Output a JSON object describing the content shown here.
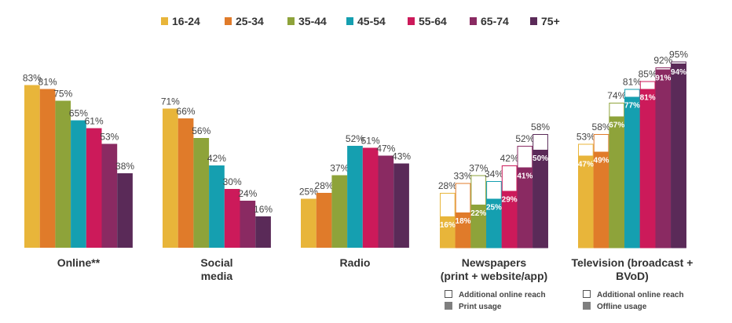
{
  "colors": {
    "16-24": "#e8b53a",
    "25-34": "#e07b2a",
    "35-44": "#8ea33a",
    "45-54": "#159fb0",
    "55-64": "#cc1a5a",
    "65-74": "#8a2a62",
    "75+": "#5a2a58",
    "print_usage_swatch": "#7f7f7f"
  },
  "chart_data": {
    "type": "bar",
    "legend_position": "top",
    "grid": false,
    "series_names": [
      "16-24",
      "25-34",
      "35-44",
      "45-54",
      "55-64",
      "65-74",
      "75+"
    ],
    "groups": [
      {
        "label": "Online**",
        "values": [
          83,
          81,
          75,
          65,
          61,
          53,
          38
        ],
        "labels": [
          "83%",
          "81%",
          "75%",
          "65%",
          "61%",
          "53%",
          "38%"
        ]
      },
      {
        "label": "Social\nmedia",
        "values": [
          71,
          66,
          56,
          42,
          30,
          24,
          16
        ],
        "labels": [
          "71%",
          "66%",
          "56%",
          "42%",
          "30%",
          "24%",
          "16%"
        ]
      },
      {
        "label": "Radio",
        "values": [
          25,
          28,
          37,
          52,
          51,
          47,
          43
        ],
        "labels": [
          "25%",
          "28%",
          "37%",
          "52%",
          "51%",
          "47%",
          "43%"
        ]
      },
      {
        "label": "Newspapers\n(print + website/app)",
        "values": [
          28,
          33,
          37,
          34,
          42,
          52,
          58
        ],
        "labels": [
          "28%",
          "33%",
          "37%",
          "34%",
          "42%",
          "52%",
          "58%"
        ],
        "inner_values": [
          16,
          18,
          22,
          25,
          29,
          41,
          50
        ],
        "inner_labels": [
          "16%",
          "18%",
          "22%",
          "25%",
          "29%",
          "41%",
          "50%"
        ],
        "stacked_note": {
          "outline_label": "Additional online reach",
          "fill_label": "Print usage"
        }
      },
      {
        "label": "Television (broadcast +\nBVoD)",
        "values": [
          53,
          58,
          74,
          81,
          85,
          92,
          95
        ],
        "labels": [
          "53%",
          "58%",
          "74%",
          "81%",
          "85%",
          "92%",
          "95%"
        ],
        "inner_values": [
          47,
          49,
          67,
          77,
          81,
          91,
          94
        ],
        "inner_labels": [
          "47%",
          "49%",
          "67%",
          "77%",
          "81%",
          "91%",
          "94%"
        ],
        "stacked_note": {
          "outline_label": "Additional online reach",
          "fill_label": "Offline usage"
        }
      }
    ],
    "ylim": [
      0,
      100
    ]
  }
}
